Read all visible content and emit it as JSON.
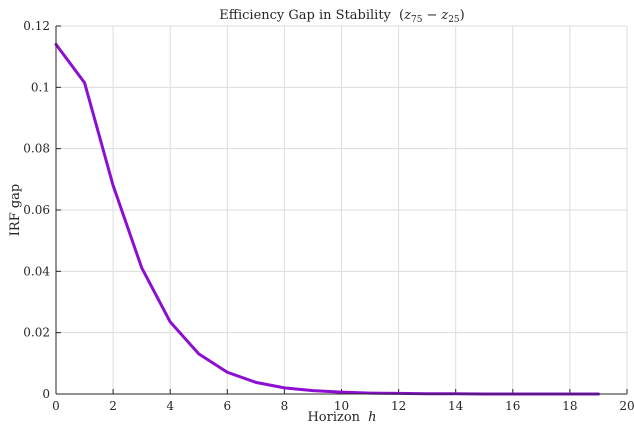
{
  "chart_data": {
    "type": "line",
    "title_main": "Efficiency Gap in Stability",
    "title_math_open": "(",
    "title_math_z75_base": "z",
    "title_math_z75_sub": "75",
    "title_math_minus": "−",
    "title_math_z25_base": "z",
    "title_math_z25_sub": "25",
    "title_math_close": ")",
    "xlabel_text": "Horizon",
    "xlabel_var": "h",
    "ylabel": "IRF gap",
    "xlim": [
      0,
      20
    ],
    "ylim": [
      0,
      0.12
    ],
    "xticks": [
      "0",
      "2",
      "4",
      "6",
      "8",
      "10",
      "12",
      "14",
      "16",
      "18",
      "20"
    ],
    "yticks": [
      "0",
      "0.02",
      "0.04",
      "0.06",
      "0.08",
      "0.1",
      "0.12"
    ],
    "grid": true,
    "color": "#8B0FD1",
    "series": [
      {
        "x": [
          0,
          1,
          2,
          3,
          4,
          5,
          6,
          7,
          8,
          9,
          10,
          11,
          12,
          13,
          14,
          15,
          16,
          17,
          18,
          19
        ],
        "y": [
          0.114,
          0.1015,
          0.068,
          0.0412,
          0.0235,
          0.0131,
          0.0071,
          0.0038,
          0.002,
          0.0011,
          0.0006,
          0.0003,
          0.0002,
          0.0001,
          0.0001,
          0.0,
          0.0,
          0.0,
          0.0,
          0.0
        ]
      }
    ]
  }
}
